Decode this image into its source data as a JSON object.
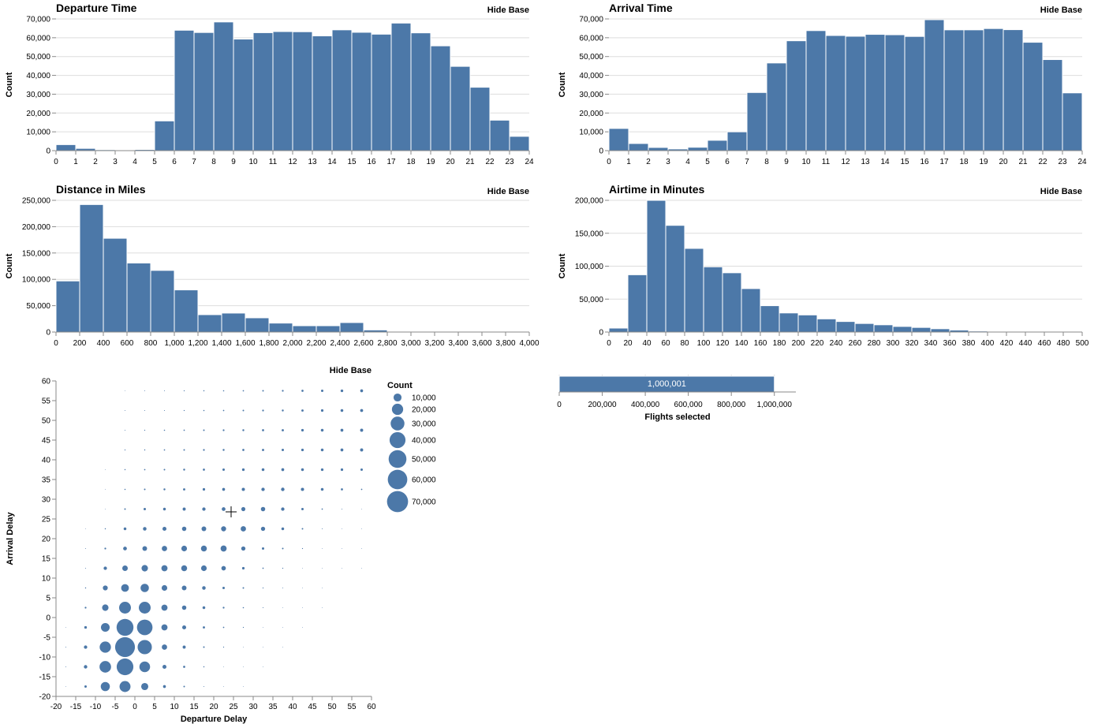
{
  "colors": {
    "bar": "#4c78a8",
    "grid": "#dddddd",
    "axis": "#888888"
  },
  "hide_base_label": "Hide Base",
  "chart_data": [
    {
      "id": "departure",
      "type": "bar",
      "title": "Departure Time",
      "xlabel": "",
      "ylabel": "Count",
      "xlim": [
        0,
        24
      ],
      "ylim": [
        0,
        70000
      ],
      "x_ticks": [
        0,
        1,
        2,
        3,
        4,
        5,
        6,
        7,
        8,
        9,
        10,
        11,
        12,
        13,
        14,
        15,
        16,
        17,
        18,
        19,
        20,
        21,
        22,
        23,
        24
      ],
      "y_ticks": [
        0,
        10000,
        20000,
        30000,
        40000,
        50000,
        60000,
        70000
      ],
      "bin_width": 1,
      "bin_starts": [
        0,
        1,
        2,
        3,
        4,
        5,
        6,
        7,
        8,
        9,
        10,
        11,
        12,
        13,
        14,
        15,
        16,
        17,
        18,
        19,
        20,
        21,
        22,
        23
      ],
      "values": [
        3200,
        1200,
        500,
        200,
        600,
        15800,
        64000,
        62800,
        68400,
        59300,
        62700,
        63300,
        63200,
        61000,
        64200,
        62900,
        61900,
        67800,
        62600,
        55700,
        44800,
        33700,
        16200,
        7600
      ]
    },
    {
      "id": "arrival",
      "type": "bar",
      "title": "Arrival Time",
      "xlabel": "",
      "ylabel": "Count",
      "xlim": [
        0,
        24
      ],
      "ylim": [
        0,
        70000
      ],
      "x_ticks": [
        0,
        1,
        2,
        3,
        4,
        5,
        6,
        7,
        8,
        9,
        10,
        11,
        12,
        13,
        14,
        15,
        16,
        17,
        18,
        19,
        20,
        21,
        22,
        23,
        24
      ],
      "y_ticks": [
        0,
        10000,
        20000,
        30000,
        40000,
        50000,
        60000,
        70000
      ],
      "bin_width": 1,
      "bin_starts": [
        0,
        1,
        2,
        3,
        4,
        5,
        6,
        7,
        8,
        9,
        10,
        11,
        12,
        13,
        14,
        15,
        16,
        17,
        18,
        19,
        20,
        21,
        22,
        23
      ],
      "values": [
        11800,
        3800,
        1700,
        900,
        1800,
        5500,
        10000,
        30900,
        46600,
        58400,
        63800,
        61200,
        60800,
        61800,
        61600,
        60700,
        69600,
        64200,
        64200,
        64900,
        64300,
        57600,
        48400,
        30700
      ]
    },
    {
      "id": "distance",
      "type": "bar",
      "title": "Distance in Miles",
      "xlabel": "",
      "ylabel": "Count",
      "xlim": [
        0,
        4000
      ],
      "ylim": [
        0,
        250000
      ],
      "x_ticks": [
        0,
        200,
        400,
        600,
        800,
        1000,
        1200,
        1400,
        1600,
        1800,
        2000,
        2200,
        2400,
        2600,
        2800,
        3000,
        3200,
        3400,
        3600,
        3800,
        4000
      ],
      "y_ticks": [
        0,
        50000,
        100000,
        150000,
        200000,
        250000
      ],
      "bin_width": 200,
      "bin_starts": [
        0,
        200,
        400,
        600,
        800,
        1000,
        1200,
        1400,
        1600,
        1800,
        2000,
        2200,
        2400,
        2600,
        2800,
        3000,
        3200,
        3400,
        3600,
        3800
      ],
      "values": [
        97000,
        242000,
        178000,
        131000,
        117000,
        80000,
        33000,
        36000,
        27000,
        17000,
        12000,
        12000,
        18000,
        4000,
        1200,
        500,
        300,
        200,
        300,
        500
      ]
    },
    {
      "id": "airtime",
      "type": "bar",
      "title": "Airtime in Minutes",
      "xlabel": "",
      "ylabel": "Count",
      "xlim": [
        0,
        500
      ],
      "ylim": [
        0,
        200000
      ],
      "x_ticks": [
        0,
        20,
        40,
        60,
        80,
        100,
        120,
        140,
        160,
        180,
        200,
        220,
        240,
        260,
        280,
        300,
        320,
        340,
        360,
        380,
        400,
        420,
        440,
        460,
        480,
        500
      ],
      "y_ticks": [
        0,
        50000,
        100000,
        150000,
        200000
      ],
      "bin_width": 20,
      "bin_starts": [
        0,
        20,
        40,
        60,
        80,
        100,
        120,
        140,
        160,
        180,
        200,
        220,
        240,
        260,
        280,
        300,
        320,
        340,
        360,
        380,
        400,
        420,
        440,
        460,
        480
      ],
      "values": [
        6000,
        87000,
        200000,
        162000,
        127000,
        99000,
        90000,
        66000,
        40000,
        29000,
        26000,
        20000,
        16000,
        13000,
        11000,
        8500,
        7000,
        5000,
        3000,
        1500,
        900,
        500,
        300,
        200,
        100
      ]
    },
    {
      "id": "delay",
      "type": "scatter",
      "title": "",
      "xlabel": "Departure Delay",
      "ylabel": "Arrival Delay",
      "xlim": [
        -20,
        60
      ],
      "ylim": [
        -20,
        60
      ],
      "x_ticks": [
        -20,
        -15,
        -10,
        -5,
        0,
        5,
        10,
        15,
        20,
        25,
        30,
        35,
        40,
        45,
        50,
        55,
        60
      ],
      "y_ticks": [
        -20,
        -15,
        -10,
        -5,
        0,
        5,
        10,
        15,
        20,
        25,
        30,
        35,
        40,
        45,
        50,
        55,
        60
      ],
      "x_centers": [
        -17.5,
        -12.5,
        -7.5,
        -2.5,
        2.5,
        7.5,
        12.5,
        17.5,
        22.5,
        27.5,
        32.5,
        37.5,
        42.5,
        47.5,
        52.5,
        57.5
      ],
      "y_centers": [
        57.5,
        52.5,
        47.5,
        42.5,
        37.5,
        32.5,
        27.5,
        22.5,
        17.5,
        12.5,
        7.5,
        2.5,
        -2.5,
        -7.5,
        -12.5,
        -17.5
      ],
      "size_field": "Count",
      "counts": [
        [
          0,
          0,
          0,
          60,
          80,
          100,
          150,
          200,
          250,
          300,
          400,
          500,
          700,
          900,
          1100,
          1300
        ],
        [
          0,
          0,
          0,
          80,
          100,
          120,
          180,
          250,
          300,
          400,
          500,
          600,
          800,
          1000,
          1200,
          1400
        ],
        [
          0,
          0,
          0,
          100,
          150,
          250,
          300,
          400,
          500,
          600,
          700,
          800,
          1000,
          1200,
          1300,
          1500
        ],
        [
          0,
          0,
          0,
          150,
          200,
          300,
          400,
          500,
          600,
          700,
          800,
          900,
          1000,
          1200,
          1300,
          1500
        ],
        [
          0,
          0,
          40,
          200,
          300,
          400,
          600,
          700,
          900,
          1100,
          1200,
          1300,
          1200,
          1100,
          1000,
          900
        ],
        [
          0,
          0,
          50,
          250,
          400,
          600,
          800,
          1000,
          1300,
          1600,
          1800,
          1900,
          1600,
          1200,
          700,
          300
        ],
        [
          0,
          0,
          60,
          400,
          900,
          1200,
          1500,
          1800,
          2200,
          2600,
          3000,
          1800,
          900,
          300,
          100,
          50
        ],
        [
          0,
          60,
          200,
          1200,
          2000,
          2500,
          3000,
          3500,
          4000,
          4500,
          2800,
          1200,
          400,
          100,
          40,
          20
        ],
        [
          0,
          80,
          500,
          2200,
          3500,
          4500,
          5000,
          5500,
          5800,
          2800,
          900,
          400,
          150,
          50,
          20,
          10
        ],
        [
          0,
          100,
          1800,
          4800,
          6500,
          6000,
          5500,
          5000,
          3200,
          1000,
          300,
          150,
          60,
          30,
          10,
          10
        ],
        [
          0,
          200,
          3800,
          9500,
          11000,
          5000,
          3500,
          2000,
          900,
          400,
          150,
          80,
          40,
          10,
          0,
          0
        ],
        [
          0,
          500,
          6500,
          22000,
          22000,
          6000,
          3000,
          1200,
          500,
          250,
          120,
          60,
          30,
          10,
          0,
          0
        ],
        [
          60,
          1100,
          12000,
          45000,
          38000,
          6000,
          2500,
          800,
          300,
          150,
          60,
          30,
          10,
          0,
          0,
          0
        ],
        [
          90,
          1800,
          20000,
          62000,
          32000,
          4500,
          1500,
          400,
          150,
          60,
          30,
          10,
          0,
          0,
          0,
          0
        ],
        [
          80,
          1900,
          21000,
          44000,
          18000,
          2500,
          700,
          200,
          60,
          30,
          10,
          0,
          0,
          0,
          0,
          0
        ],
        [
          60,
          900,
          13000,
          19000,
          8000,
          1300,
          400,
          100,
          30,
          10,
          0,
          0,
          0,
          0,
          0,
          0
        ]
      ],
      "legend": {
        "title": "Count",
        "values": [
          10000,
          20000,
          30000,
          40000,
          50000,
          60000,
          70000
        ]
      }
    },
    {
      "id": "flights",
      "type": "bar",
      "title": "",
      "xlabel": "Flights selected",
      "ylabel": "",
      "xlim": [
        0,
        1100000
      ],
      "x_ticks": [
        0,
        200000,
        400000,
        600000,
        800000,
        1000000
      ],
      "values": [
        1000001
      ],
      "value_label": "1,000,001"
    }
  ]
}
